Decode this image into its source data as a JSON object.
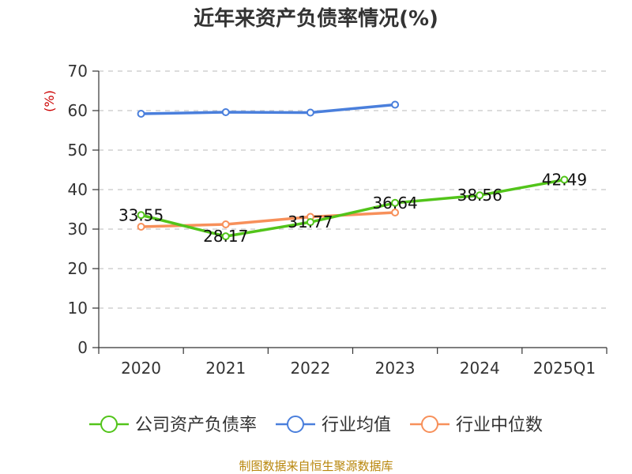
{
  "chart_data": {
    "type": "line",
    "title": "近年来资产负债率情况(%)",
    "ylabel": "(%)",
    "xlabel": "",
    "categories": [
      "2020",
      "2021",
      "2022",
      "2023",
      "2024",
      "2025Q1"
    ],
    "ylim": [
      0,
      70
    ],
    "yticks": [
      0,
      10,
      20,
      30,
      40,
      50,
      60,
      70
    ],
    "grid": true,
    "legend_position": "bottom",
    "series": [
      {
        "name": "公司资产负债率",
        "color": "#52c41a",
        "values": [
          33.55,
          28.17,
          31.77,
          36.64,
          38.56,
          42.49
        ],
        "labels": [
          "33.55",
          "28.17",
          "31.77",
          "36.64",
          "38.56",
          "42.49"
        ]
      },
      {
        "name": "行业均值",
        "color": "#4a7fdc",
        "values": [
          59.2,
          59.6,
          59.5,
          61.5,
          null,
          null
        ]
      },
      {
        "name": "行业中位数",
        "color": "#f7905a",
        "values": [
          30.6,
          31.2,
          33.1,
          34.2,
          null,
          null
        ]
      }
    ]
  },
  "source": "制图数据来自恒生聚源数据库"
}
